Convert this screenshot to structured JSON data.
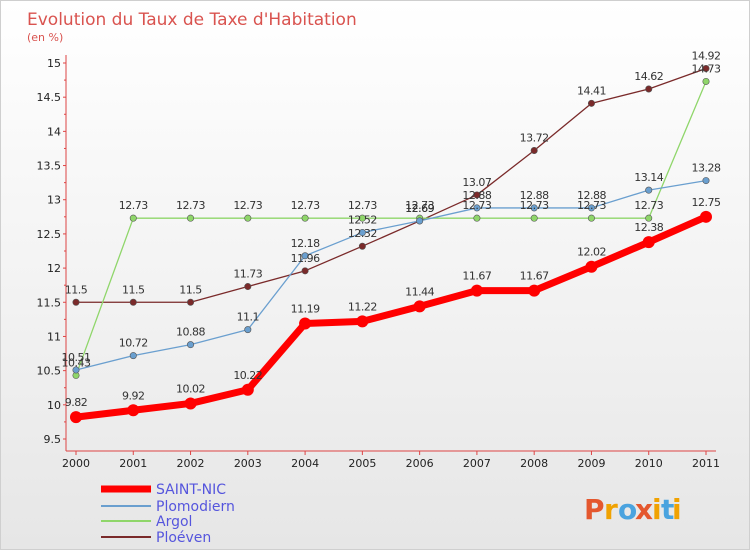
{
  "chart_data": {
    "type": "line",
    "title": "Evolution du Taux de Taxe d'Habitation",
    "subtitle": "(en %)",
    "xlabel": "",
    "ylabel": "",
    "x": [
      "2000",
      "2001",
      "2002",
      "2003",
      "2004",
      "2005",
      "2006",
      "2007",
      "2008",
      "2009",
      "2010",
      "2011"
    ],
    "ylim": [
      9.5,
      15
    ],
    "yticks": [
      "9.5",
      "10",
      "10.5",
      "11",
      "11.5",
      "12",
      "12.5",
      "13",
      "13.5",
      "14",
      "14.5",
      "15"
    ],
    "grid": false,
    "legend_position": "bottom-left",
    "series": [
      {
        "name": "SAINT-NIC",
        "color": "#ff0000",
        "values": [
          9.82,
          9.92,
          10.02,
          10.22,
          11.19,
          11.22,
          11.44,
          11.67,
          11.67,
          12.02,
          12.38,
          12.75
        ],
        "labels": [
          "9.82",
          "9.92",
          "10.02",
          "10.22",
          "11.19",
          "11.22",
          "11.44",
          "11.67",
          "11.67",
          "12.02",
          "12.38",
          "12.75"
        ]
      },
      {
        "name": "Plomodiern",
        "color": "#6a9fcf",
        "values": [
          10.51,
          10.72,
          10.88,
          11.1,
          12.18,
          12.52,
          12.69,
          12.88,
          12.88,
          12.88,
          13.14,
          13.28
        ],
        "labels": [
          "10.51",
          "10.72",
          "10.88",
          "11.1",
          "12.18",
          "12.52",
          "12.69",
          "12.88",
          "12.88",
          "12.88",
          "13.14",
          "13.28"
        ]
      },
      {
        "name": "Argol",
        "color": "#8fd66a",
        "values": [
          10.43,
          12.73,
          12.73,
          12.73,
          12.73,
          12.73,
          12.73,
          12.73,
          12.73,
          12.73,
          12.73,
          14.73
        ],
        "labels": [
          "10.43",
          "12.73",
          "12.73",
          "12.73",
          "12.73",
          "12.73",
          "12.73",
          "12.73",
          "12.73",
          "12.73",
          "12.73",
          "14.73"
        ]
      },
      {
        "name": "Ploéven",
        "color": "#7a2a2a",
        "values": [
          11.5,
          11.5,
          11.5,
          11.73,
          11.96,
          12.32,
          12.69,
          13.07,
          13.72,
          14.41,
          14.62,
          14.92
        ],
        "labels": [
          "11.5",
          "11.5",
          "11.5",
          "11.73",
          "11.96",
          "12.32",
          "12.69",
          "13.07",
          "13.72",
          "14.41",
          "14.62",
          "14.92"
        ]
      }
    ]
  },
  "brand": {
    "text": "Proxiti",
    "letters": [
      "P",
      "r",
      "o",
      "x",
      "i",
      "t",
      "i"
    ],
    "colors": [
      "#e4572e",
      "#f0a202",
      "#4aa3df",
      "#e4572e",
      "#f0a202",
      "#4aa3df",
      "#f0a202"
    ]
  },
  "legend_color": "#5555dd"
}
